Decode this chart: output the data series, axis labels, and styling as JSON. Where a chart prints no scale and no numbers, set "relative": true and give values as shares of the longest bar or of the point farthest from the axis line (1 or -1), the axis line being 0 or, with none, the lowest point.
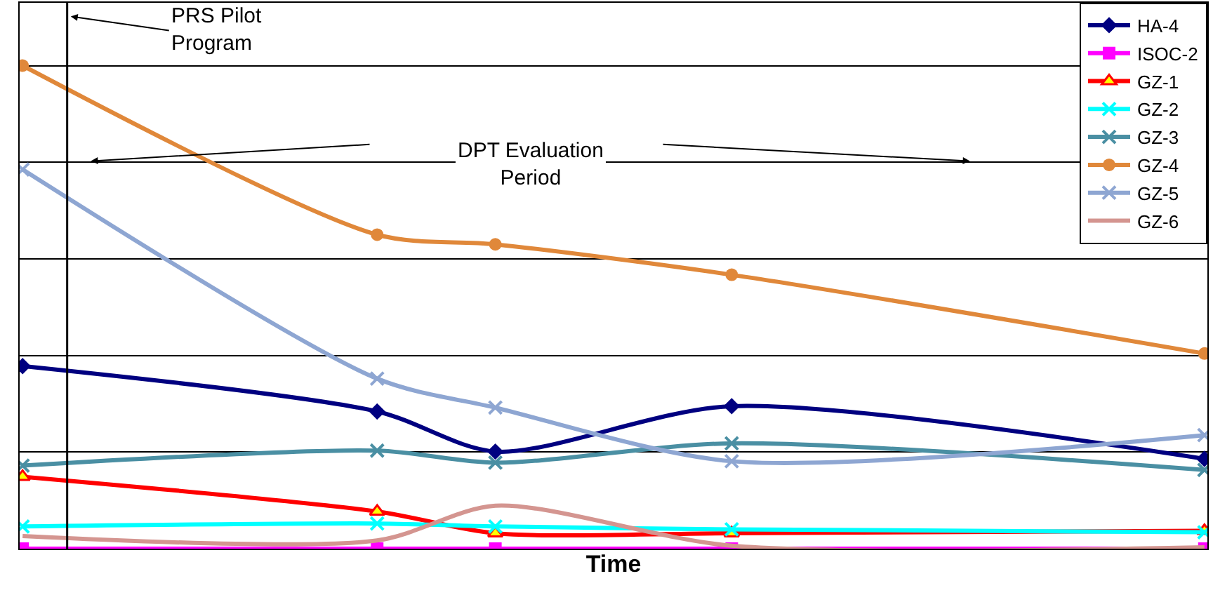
{
  "chart_data": {
    "type": "line",
    "relative": true,
    "xlabel": "Time",
    "categories": [
      null,
      null,
      null,
      null,
      null,
      null,
      null,
      null,
      null,
      null,
      null,
      null,
      null,
      null,
      null,
      null,
      null,
      null,
      null,
      null,
      null
    ],
    "series": [
      {
        "name": "HA-4",
        "color": "#000080",
        "marker": "diamond",
        "values": [
          0.378,
          null,
          null,
          null,
          null,
          null,
          0.284,
          null,
          0.201,
          null,
          null,
          null,
          0.295,
          null,
          null,
          null,
          null,
          null,
          null,
          null,
          0.186
        ]
      },
      {
        "name": "ISOC-2",
        "color": "#ff00ff",
        "marker": "square",
        "values": [
          0,
          null,
          null,
          null,
          null,
          null,
          0,
          null,
          0,
          null,
          null,
          null,
          0,
          null,
          null,
          null,
          null,
          null,
          null,
          null,
          0
        ]
      },
      {
        "name": "GZ-1",
        "color": "#ff0000",
        "marker": "triangle",
        "values": [
          0.149,
          null,
          null,
          null,
          null,
          null,
          0.077,
          null,
          0.032,
          null,
          null,
          null,
          0.032,
          null,
          null,
          null,
          null,
          null,
          null,
          null,
          0.037
        ]
      },
      {
        "name": "GZ-2",
        "color": "#00ffff",
        "marker": "cross",
        "values": [
          0.046,
          null,
          null,
          null,
          null,
          null,
          0.052,
          null,
          0.046,
          null,
          null,
          null,
          0.04,
          null,
          null,
          null,
          null,
          null,
          null,
          null,
          0.034
        ]
      },
      {
        "name": "GZ-3",
        "color": "#4a8fa3",
        "marker": "cross",
        "values": [
          0.172,
          null,
          null,
          null,
          null,
          null,
          0.203,
          null,
          0.178,
          null,
          null,
          null,
          0.218,
          null,
          null,
          null,
          null,
          null,
          null,
          null,
          0.163
        ]
      },
      {
        "name": "GZ-4",
        "color": "#e0883a",
        "marker": "circle",
        "values": [
          1,
          null,
          null,
          null,
          null,
          null,
          0.65,
          null,
          0.63,
          null,
          null,
          null,
          0.567,
          null,
          null,
          null,
          null,
          null,
          null,
          null,
          0.404
        ]
      },
      {
        "name": "GZ-5",
        "color": "#8ea6d2",
        "marker": "cross",
        "values": [
          0.785,
          null,
          null,
          null,
          null,
          null,
          0.352,
          null,
          0.292,
          null,
          null,
          null,
          0.181,
          null,
          null,
          null,
          null,
          null,
          null,
          null,
          0.235
        ]
      },
      {
        "name": "GZ-6",
        "color": "#d49590",
        "marker": "none",
        "values": [
          0.026,
          null,
          null,
          null,
          null,
          null,
          0.017,
          null,
          0.089,
          null,
          null,
          null,
          0.006,
          null,
          null,
          null,
          null,
          null,
          null,
          null,
          0.003
        ]
      }
    ],
    "annotations": [
      "PRS Pilot Program",
      "DPT Evaluation Period"
    ],
    "grid": "y",
    "legend": "top right",
    "line_style": "solid"
  }
}
